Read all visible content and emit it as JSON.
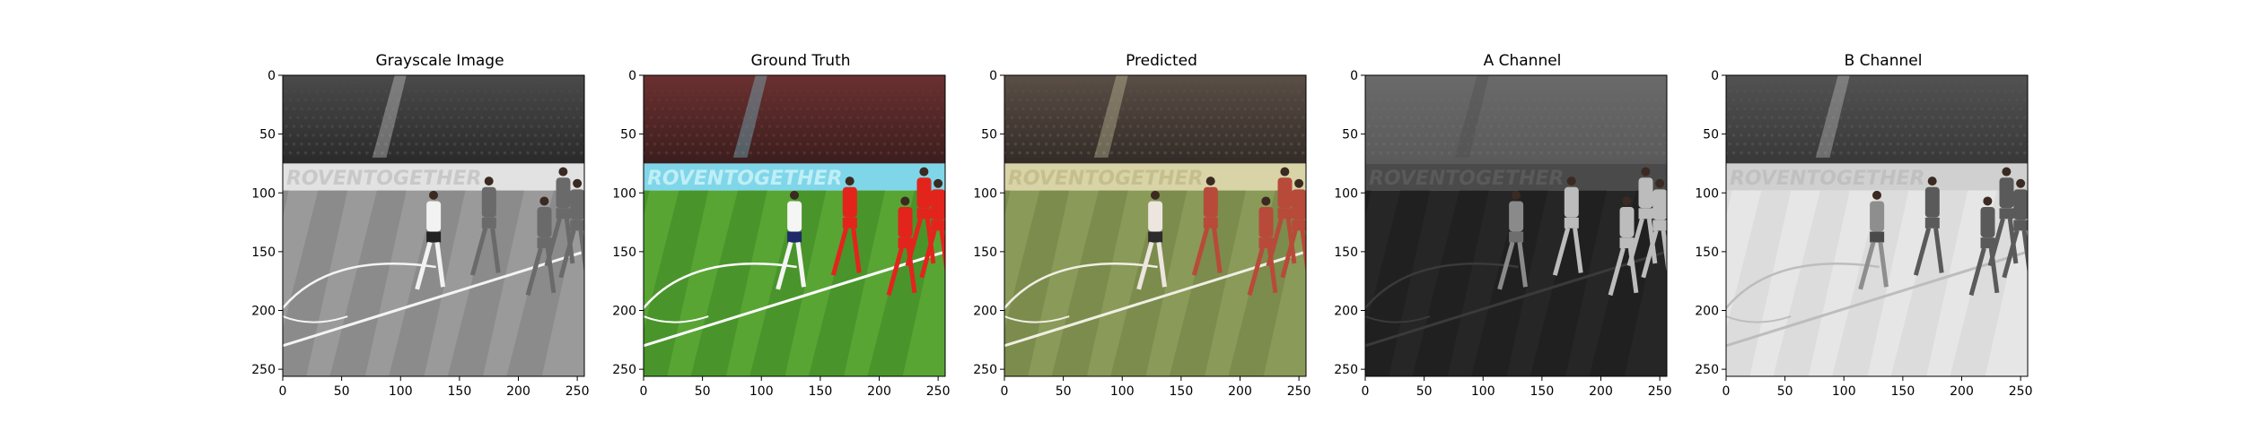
{
  "figure": {
    "panels": [
      {
        "id": "grayscale",
        "title": "Grayscale Image",
        "palette": {
          "crowd_top": "#4a4a4a",
          "crowd_bottom": "#2a2a2a",
          "banner": "#e2e2e2",
          "banner_text": "#c8c8c8",
          "pitch_light": "#9a9a9a",
          "pitch_dark": "#828282",
          "line": "#f4f4f4",
          "player_home": "#6a6a6a",
          "player_away": "#f2f2f2",
          "shorts_away": "#222222"
        }
      },
      {
        "id": "ground-truth",
        "title": "Ground Truth",
        "palette": {
          "crowd_top": "#6b3030",
          "crowd_bottom": "#3a1e1e",
          "banner": "#7fd6e8",
          "banner_text": "#bfeef7",
          "pitch_light": "#58a534",
          "pitch_dark": "#3f8a26",
          "line": "#ffffff",
          "player_home": "#e3241c",
          "player_away": "#f5f5f5",
          "shorts_away": "#1e2a6a"
        }
      },
      {
        "id": "predicted",
        "title": "Predicted",
        "palette": {
          "crowd_top": "#5a4e46",
          "crowd_bottom": "#332b27",
          "banner": "#d8d4a8",
          "banner_text": "#c4bf8c",
          "pitch_light": "#8a9a58",
          "pitch_dark": "#738444",
          "line": "#f0efe4",
          "player_home": "#b84a3a",
          "player_away": "#ece6df",
          "shorts_away": "#2c2a2c"
        }
      },
      {
        "id": "a-channel",
        "title": "A Channel",
        "palette": {
          "crowd_top": "#6a6a6a",
          "crowd_bottom": "#5a5a5a",
          "banner": "#4a4a4a",
          "banner_text": "#5a5a5a",
          "pitch_light": "#262626",
          "pitch_dark": "#1c1c1c",
          "line": "#3a3a3a",
          "player_home": "#bcbcbc",
          "player_away": "#8a8a8a",
          "shorts_away": "#6e6e6e"
        }
      },
      {
        "id": "b-channel",
        "title": "B Channel",
        "palette": {
          "crowd_top": "#525252",
          "crowd_bottom": "#383838",
          "banner": "#d0d0d0",
          "banner_text": "#c0c0c0",
          "pitch_light": "#e6e6e6",
          "pitch_dark": "#d6d6d6",
          "line": "#bdbdbd",
          "player_home": "#5a5a5a",
          "player_away": "#8e8e8e",
          "shorts_away": "#4a4a4a"
        }
      }
    ],
    "x_ticks": [
      "0",
      "50",
      "100",
      "150",
      "200",
      "250"
    ],
    "y_ticks": [
      "0",
      "50",
      "100",
      "150",
      "200",
      "250"
    ],
    "banner_text": "ROVENTOGETHER"
  }
}
